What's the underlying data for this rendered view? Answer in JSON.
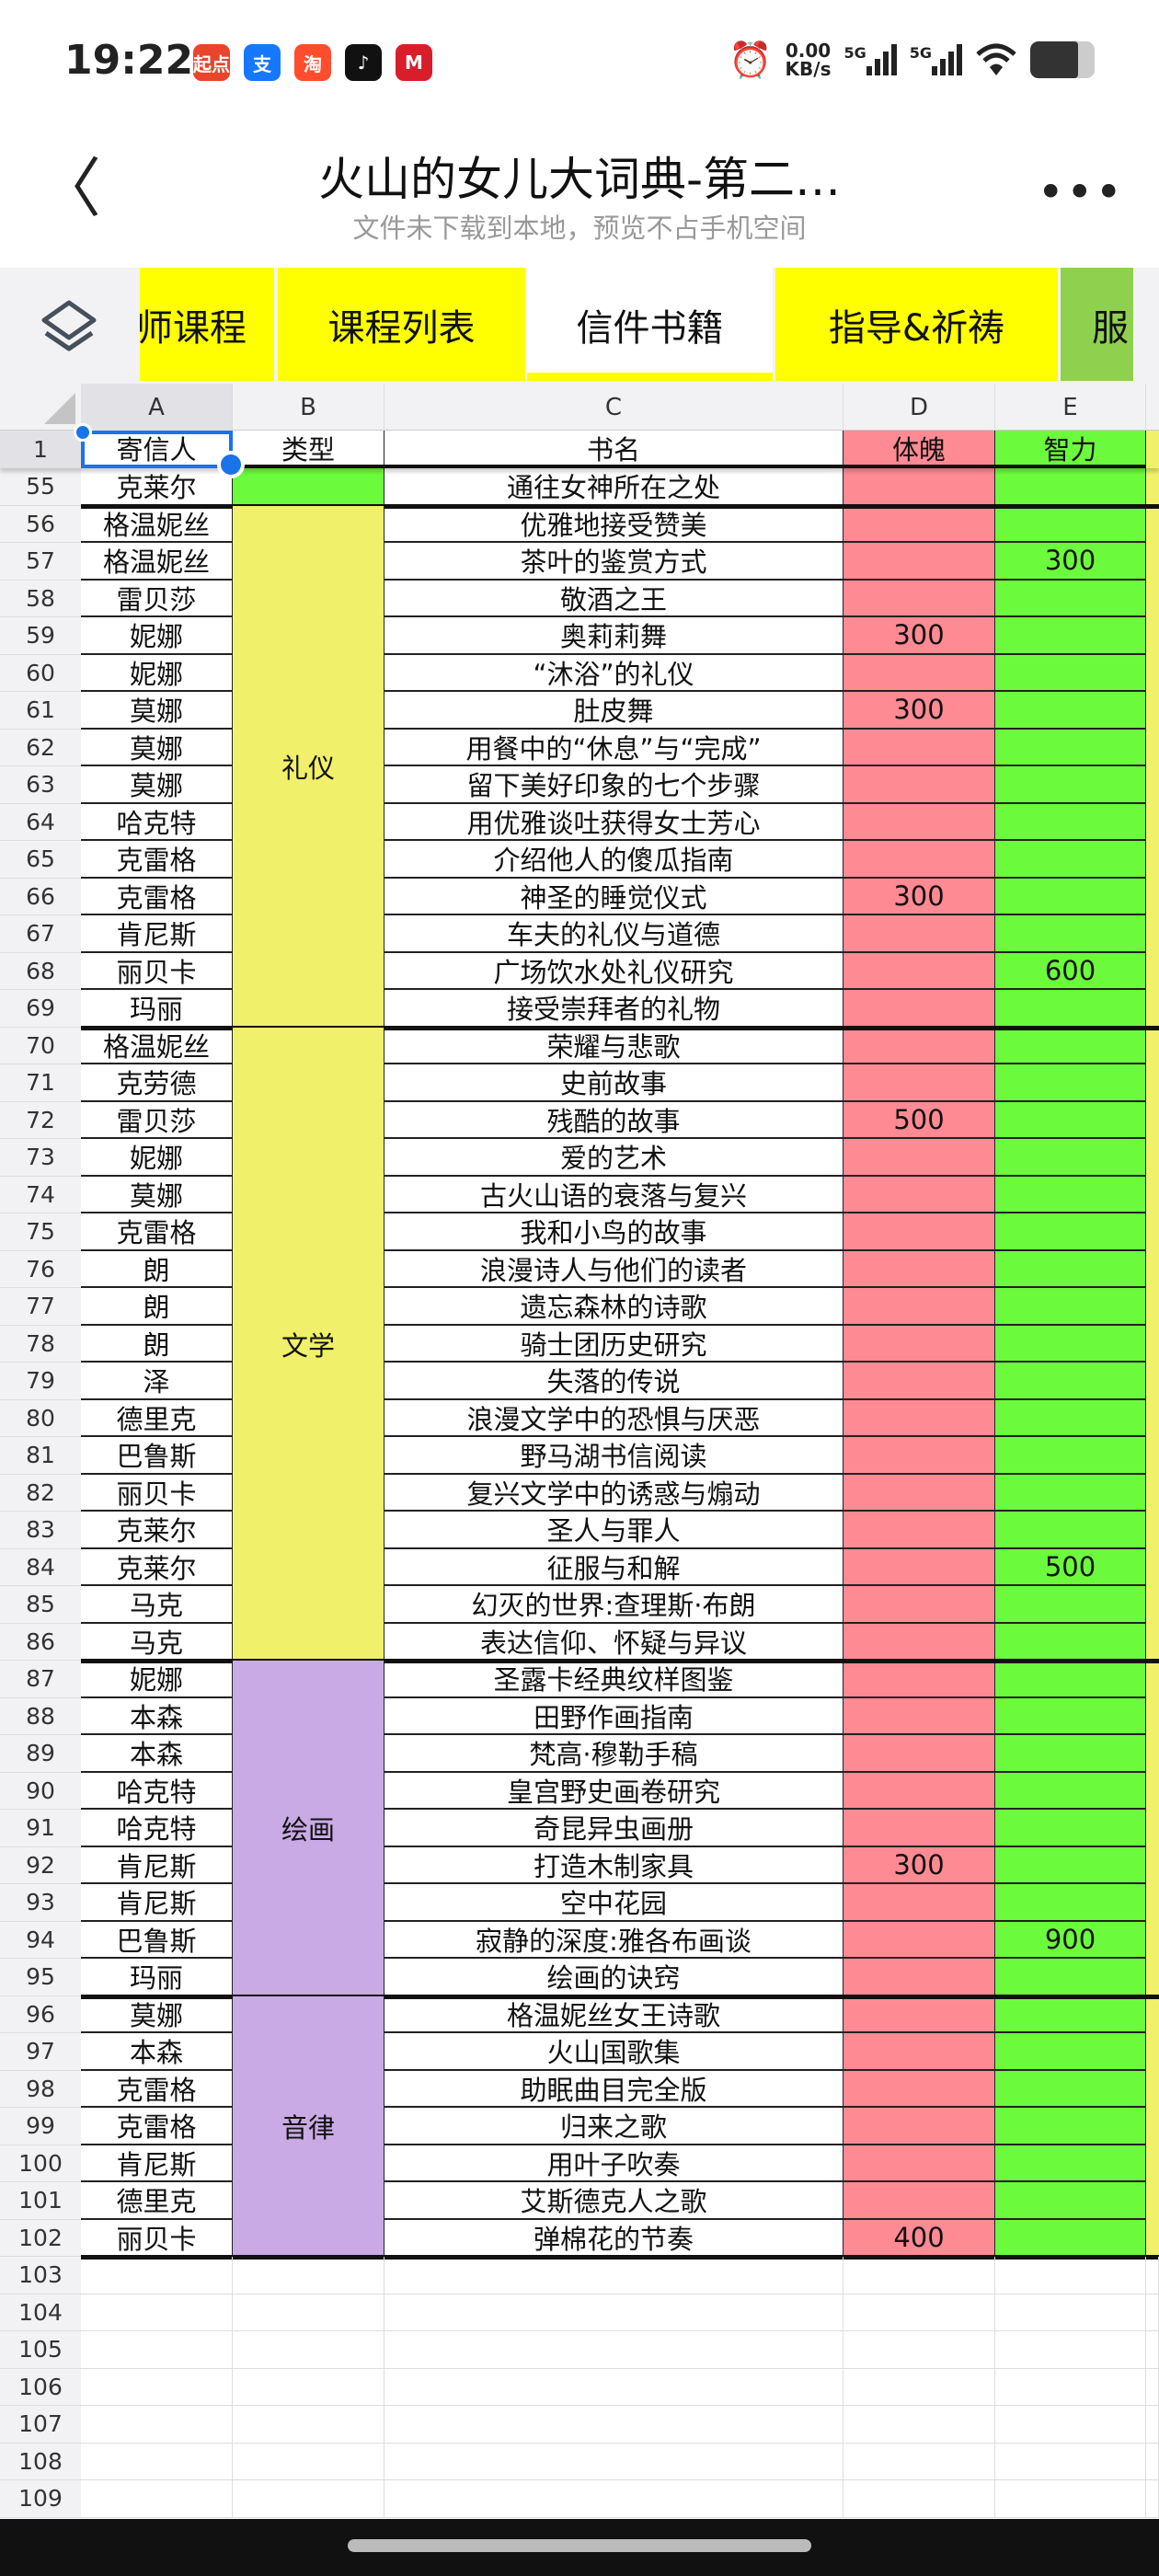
{
  "status_bar": {
    "time": "19:22",
    "apps": [
      {
        "name": "qidian-icon",
        "label": "起点",
        "color": "#e8452c"
      },
      {
        "name": "alipay-icon",
        "label": "支",
        "color": "#1677ff"
      },
      {
        "name": "taobao-icon",
        "label": "淘",
        "color": "#ff4d2e"
      },
      {
        "name": "tiktok-icon",
        "label": "♪",
        "color": "#111111"
      },
      {
        "name": "cmb-icon",
        "label": "M",
        "color": "#d81e2a"
      }
    ],
    "net_speed": "0.00",
    "net_unit": "KB/s",
    "sim1": "5G",
    "sim2": "5G"
  },
  "header": {
    "title": "火山的女儿大词典-第二…",
    "subtitle": "文件未下载到本地，预览不占手机空间",
    "more": "•••"
  },
  "tabs": [
    {
      "label": "师课程",
      "color": "#ffff00"
    },
    {
      "label": "课程列表",
      "color": "#ffff00"
    },
    {
      "label": "信件书籍",
      "color": "#ffffff",
      "active": true
    },
    {
      "label": "指导&祈祷",
      "color": "#ffff00"
    },
    {
      "label": "服",
      "color": "#8fd14f"
    }
  ],
  "columns": [
    "A",
    "B",
    "C",
    "D",
    "E"
  ],
  "header_row": {
    "num": "1",
    "cells": [
      "寄信人",
      "类型",
      "书名",
      "体魄",
      "智力"
    ]
  },
  "colors": {
    "d": "#fe8a94",
    "e": "#6cfb3c",
    "yellow": "#f0f06a",
    "purple": "#c9aae5",
    "green": "#6cfb3c",
    "accent": "#1a73e8"
  },
  "groups": [
    {
      "label": "",
      "start": 55,
      "end": 55,
      "color": "#6cfb3c"
    },
    {
      "label": "礼仪",
      "start": 56,
      "end": 69,
      "color": "#f0f06a"
    },
    {
      "label": "文学",
      "start": 70,
      "end": 86,
      "color": "#f0f06a"
    },
    {
      "label": "绘画",
      "start": 87,
      "end": 95,
      "color": "#c9aae5"
    },
    {
      "label": "音律",
      "start": 96,
      "end": 102,
      "color": "#c9aae5"
    }
  ],
  "rows": [
    [
      "55",
      "克莱尔",
      "通往女神所在之处",
      "",
      ""
    ],
    [
      "56",
      "格温妮丝",
      "优雅地接受赞美",
      "",
      ""
    ],
    [
      "57",
      "格温妮丝",
      "茶叶的鉴赏方式",
      "",
      "300"
    ],
    [
      "58",
      "雷贝莎",
      "敬酒之王",
      "",
      ""
    ],
    [
      "59",
      "妮娜",
      "奥莉莉舞",
      "300",
      ""
    ],
    [
      "60",
      "妮娜",
      "“沐浴”的礼仪",
      "",
      ""
    ],
    [
      "61",
      "莫娜",
      "肚皮舞",
      "300",
      ""
    ],
    [
      "62",
      "莫娜",
      "用餐中的“休息”与“完成”",
      "",
      ""
    ],
    [
      "63",
      "莫娜",
      "留下美好印象的七个步骤",
      "",
      ""
    ],
    [
      "64",
      "哈克特",
      "用优雅谈吐获得女士芳心",
      "",
      ""
    ],
    [
      "65",
      "克雷格",
      "介绍他人的傻瓜指南",
      "",
      ""
    ],
    [
      "66",
      "克雷格",
      "神圣的睡觉仪式",
      "300",
      ""
    ],
    [
      "67",
      "肯尼斯",
      "车夫的礼仪与道德",
      "",
      ""
    ],
    [
      "68",
      "丽贝卡",
      "广场饮水处礼仪研究",
      "",
      "600"
    ],
    [
      "69",
      "玛丽",
      "接受崇拜者的礼物",
      "",
      ""
    ],
    [
      "70",
      "格温妮丝",
      "荣耀与悲歌",
      "",
      ""
    ],
    [
      "71",
      "克劳德",
      "史前故事",
      "",
      ""
    ],
    [
      "72",
      "雷贝莎",
      "残酷的故事",
      "500",
      ""
    ],
    [
      "73",
      "妮娜",
      "爱的艺术",
      "",
      ""
    ],
    [
      "74",
      "莫娜",
      "古火山语的衰落与复兴",
      "",
      ""
    ],
    [
      "75",
      "克雷格",
      "我和小鸟的故事",
      "",
      ""
    ],
    [
      "76",
      "朗",
      "浪漫诗人与他们的读者",
      "",
      ""
    ],
    [
      "77",
      "朗",
      "遗忘森林的诗歌",
      "",
      ""
    ],
    [
      "78",
      "朗",
      "骑士团历史研究",
      "",
      ""
    ],
    [
      "79",
      "泽",
      "失落的传说",
      "",
      ""
    ],
    [
      "80",
      "德里克",
      "浪漫文学中的恐惧与厌恶",
      "",
      ""
    ],
    [
      "81",
      "巴鲁斯",
      "野马湖书信阅读",
      "",
      ""
    ],
    [
      "82",
      "丽贝卡",
      "复兴文学中的诱惑与煽动",
      "",
      ""
    ],
    [
      "83",
      "克莱尔",
      "圣人与罪人",
      "",
      ""
    ],
    [
      "84",
      "克莱尔",
      "征服与和解",
      "",
      "500"
    ],
    [
      "85",
      "马克",
      "幻灭的世界:查理斯·布朗",
      "",
      ""
    ],
    [
      "86",
      "马克",
      "表达信仰、怀疑与异议",
      "",
      ""
    ],
    [
      "87",
      "妮娜",
      "圣露卡经典纹样图鉴",
      "",
      ""
    ],
    [
      "88",
      "本森",
      "田野作画指南",
      "",
      ""
    ],
    [
      "89",
      "本森",
      "梵高·穆勒手稿",
      "",
      ""
    ],
    [
      "90",
      "哈克特",
      "皇宫野史画卷研究",
      "",
      ""
    ],
    [
      "91",
      "哈克特",
      "奇昆异虫画册",
      "",
      ""
    ],
    [
      "92",
      "肯尼斯",
      "打造木制家具",
      "300",
      ""
    ],
    [
      "93",
      "肯尼斯",
      "空中花园",
      "",
      ""
    ],
    [
      "94",
      "巴鲁斯",
      "寂静的深度:雅各布画谈",
      "",
      "900"
    ],
    [
      "95",
      "玛丽",
      "绘画的诀窍",
      "",
      ""
    ],
    [
      "96",
      "莫娜",
      "格温妮丝女王诗歌",
      "",
      ""
    ],
    [
      "97",
      "本森",
      "火山国歌集",
      "",
      ""
    ],
    [
      "98",
      "克雷格",
      "助眠曲目完全版",
      "",
      ""
    ],
    [
      "99",
      "克雷格",
      "归来之歌",
      "",
      ""
    ],
    [
      "100",
      "肯尼斯",
      "用叶子吹奏",
      "",
      ""
    ],
    [
      "101",
      "德里克",
      "艾斯德克人之歌",
      "",
      ""
    ],
    [
      "102",
      "丽贝卡",
      "弹棉花的节奏",
      "400",
      ""
    ]
  ],
  "empty_rows": [
    "103",
    "104",
    "105",
    "106",
    "107",
    "108",
    "109"
  ]
}
